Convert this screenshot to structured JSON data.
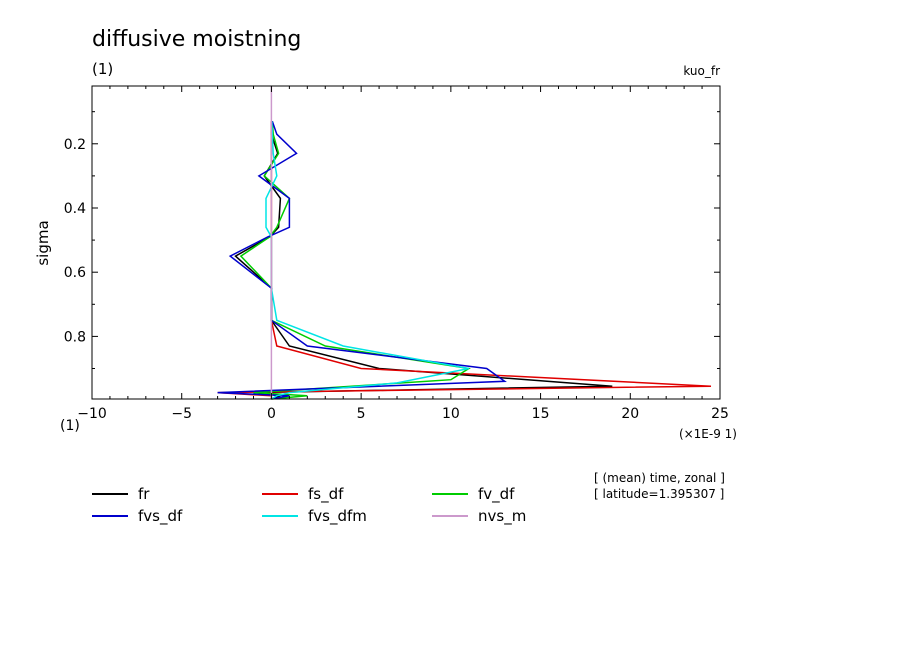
{
  "chart_data": {
    "type": "line",
    "title": "diffusive moistning",
    "subtitle_left": "(1)",
    "subtitle_right": "kuo_fr",
    "ylabel": "sigma",
    "xunit_left": "(1)",
    "xunit_right": "(×1E-9 1)",
    "xlim": [
      -10,
      25
    ],
    "ylim": [
      0.995,
      0.02
    ],
    "y_inverted": true,
    "xticks": [
      -10,
      -5,
      0,
      5,
      10,
      15,
      20,
      25
    ],
    "yticks": [
      0.2,
      0.4,
      0.6,
      0.8
    ],
    "grid": false,
    "legend_position": "below plot",
    "annotation_lines": [
      "[ (mean) time, zonal ]",
      "[ latitude=1.395307 ]"
    ],
    "series": [
      {
        "name": "fr",
        "color": "#000000",
        "points": [
          [
            0.05,
            0.13
          ],
          [
            0.0,
            0.17
          ],
          [
            0.35,
            0.23
          ],
          [
            -0.4,
            0.3
          ],
          [
            0.5,
            0.37
          ],
          [
            0.4,
            0.46
          ],
          [
            -0.1,
            0.49
          ],
          [
            -2,
            0.55
          ],
          [
            0,
            0.65
          ],
          [
            0,
            0.75
          ],
          [
            1,
            0.83
          ],
          [
            6,
            0.9
          ],
          [
            19,
            0.955
          ],
          [
            -1,
            0.975
          ],
          [
            0.5,
            0.985
          ],
          [
            0,
            0.995
          ]
        ]
      },
      {
        "name": "fs_df",
        "color": "#e00000",
        "points": [
          [
            0,
            0.13
          ],
          [
            0,
            0.17
          ],
          [
            0,
            0.23
          ],
          [
            0,
            0.3
          ],
          [
            0,
            0.37
          ],
          [
            0,
            0.46
          ],
          [
            0,
            0.49
          ],
          [
            0,
            0.55
          ],
          [
            0,
            0.65
          ],
          [
            0,
            0.75
          ],
          [
            0.3,
            0.83
          ],
          [
            5,
            0.9
          ],
          [
            24.5,
            0.955
          ],
          [
            -3,
            0.975
          ],
          [
            0,
            0.985
          ],
          [
            0,
            0.995
          ]
        ]
      },
      {
        "name": "fv_df",
        "color": "#00cc00",
        "points": [
          [
            0.05,
            0.13
          ],
          [
            0.1,
            0.17
          ],
          [
            0.4,
            0.23
          ],
          [
            -0.4,
            0.3
          ],
          [
            1,
            0.37
          ],
          [
            0.3,
            0.46
          ],
          [
            -0.1,
            0.49
          ],
          [
            -1.7,
            0.55
          ],
          [
            0,
            0.65
          ],
          [
            0,
            0.75
          ],
          [
            3,
            0.83
          ],
          [
            11,
            0.9
          ],
          [
            10,
            0.935
          ],
          [
            -1,
            0.975
          ],
          [
            2,
            0.985
          ],
          [
            0,
            0.995
          ]
        ]
      },
      {
        "name": "fvs_df",
        "color": "#0000cc",
        "points": [
          [
            0.05,
            0.13
          ],
          [
            0.3,
            0.17
          ],
          [
            1.4,
            0.23
          ],
          [
            -0.7,
            0.3
          ],
          [
            1,
            0.37
          ],
          [
            1,
            0.46
          ],
          [
            -0.2,
            0.49
          ],
          [
            -2.3,
            0.55
          ],
          [
            0,
            0.65
          ],
          [
            0,
            0.75
          ],
          [
            2,
            0.83
          ],
          [
            12,
            0.9
          ],
          [
            13,
            0.94
          ],
          [
            -3,
            0.975
          ],
          [
            1,
            0.985
          ],
          [
            0,
            0.995
          ]
        ]
      },
      {
        "name": "fvs_dfm",
        "color": "#00e5e5",
        "points": [
          [
            0.02,
            0.13
          ],
          [
            0.05,
            0.17
          ],
          [
            0.1,
            0.23
          ],
          [
            0.3,
            0.3
          ],
          [
            -0.3,
            0.37
          ],
          [
            -0.3,
            0.46
          ],
          [
            0,
            0.49
          ],
          [
            0,
            0.55
          ],
          [
            0,
            0.65
          ],
          [
            0.3,
            0.75
          ],
          [
            4,
            0.83
          ],
          [
            11,
            0.9
          ],
          [
            7,
            0.945
          ],
          [
            1,
            0.975
          ],
          [
            0.3,
            0.985
          ],
          [
            0,
            0.995
          ]
        ]
      },
      {
        "name": "nvs_m",
        "color": "#cc99cc",
        "points": [
          [
            0,
            0.02
          ],
          [
            0,
            0.995
          ]
        ]
      }
    ]
  }
}
